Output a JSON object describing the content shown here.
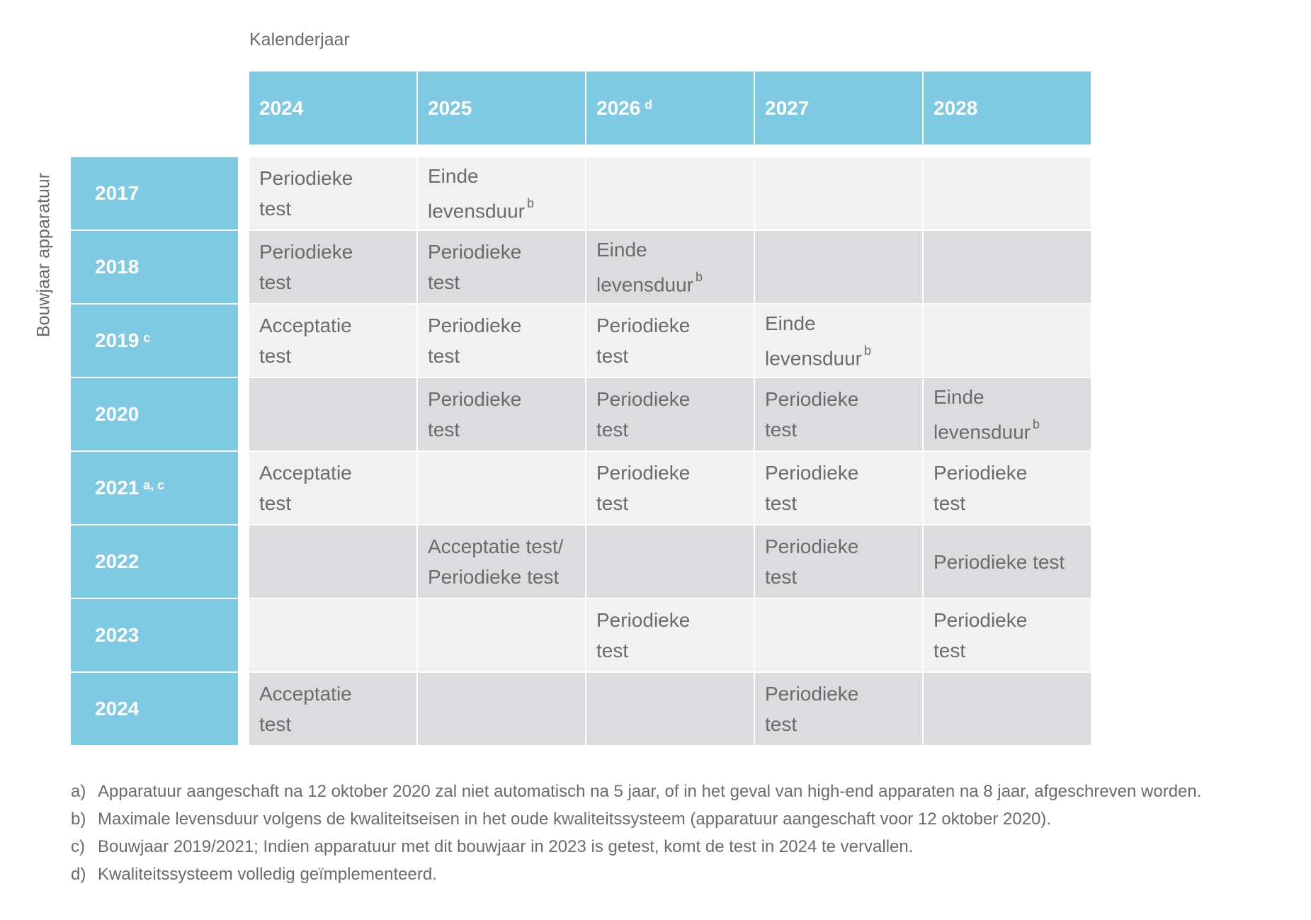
{
  "column_axis_title": "Kalenderjaar",
  "row_axis_title": "Bouwjaar apparatuur",
  "columns": [
    {
      "label": "2024",
      "sup": ""
    },
    {
      "label": "2025",
      "sup": ""
    },
    {
      "label": "2026",
      "sup": "d"
    },
    {
      "label": "2027",
      "sup": ""
    },
    {
      "label": "2028",
      "sup": ""
    }
  ],
  "rows": [
    {
      "label": "2017",
      "sup": "",
      "cells": [
        {
          "line1": "Periodieke",
          "line2": "test",
          "sup": ""
        },
        {
          "line1": "Einde",
          "line2": "levensduur",
          "sup": "b"
        },
        {
          "line1": "",
          "line2": "",
          "sup": ""
        },
        {
          "line1": "",
          "line2": "",
          "sup": ""
        },
        {
          "line1": "",
          "line2": "",
          "sup": ""
        }
      ]
    },
    {
      "label": "2018",
      "sup": "",
      "cells": [
        {
          "line1": "Periodieke",
          "line2": "test",
          "sup": ""
        },
        {
          "line1": "Periodieke",
          "line2": "test",
          "sup": ""
        },
        {
          "line1": "Einde",
          "line2": "levensduur",
          "sup": "b"
        },
        {
          "line1": "",
          "line2": "",
          "sup": ""
        },
        {
          "line1": "",
          "line2": "",
          "sup": ""
        }
      ]
    },
    {
      "label": "2019",
      "sup": "c",
      "cells": [
        {
          "line1": "Acceptatie",
          "line2": "test",
          "sup": ""
        },
        {
          "line1": "Periodieke",
          "line2": "test",
          "sup": ""
        },
        {
          "line1": "Periodieke",
          "line2": "test",
          "sup": ""
        },
        {
          "line1": "Einde",
          "line2": "levensduur",
          "sup": "b"
        },
        {
          "line1": "",
          "line2": "",
          "sup": ""
        }
      ]
    },
    {
      "label": "2020",
      "sup": "",
      "cells": [
        {
          "line1": "",
          "line2": "",
          "sup": ""
        },
        {
          "line1": "Periodieke",
          "line2": "test",
          "sup": ""
        },
        {
          "line1": "Periodieke",
          "line2": "test",
          "sup": ""
        },
        {
          "line1": "Periodieke",
          "line2": "test",
          "sup": ""
        },
        {
          "line1": "Einde",
          "line2": "levensduur",
          "sup": "b"
        }
      ]
    },
    {
      "label": "2021",
      "sup": "a, c",
      "cells": [
        {
          "line1": "Acceptatie",
          "line2": "test",
          "sup": ""
        },
        {
          "line1": "",
          "line2": "",
          "sup": ""
        },
        {
          "line1": "Periodieke",
          "line2": "test",
          "sup": ""
        },
        {
          "line1": "Periodieke",
          "line2": "test",
          "sup": ""
        },
        {
          "line1": "Periodieke",
          "line2": "test",
          "sup": ""
        }
      ]
    },
    {
      "label": "2022",
      "sup": "",
      "cells": [
        {
          "line1": "",
          "line2": "",
          "sup": ""
        },
        {
          "line1": "Acceptatie test/",
          "line2": "Periodieke test",
          "sup": ""
        },
        {
          "line1": "",
          "line2": "",
          "sup": ""
        },
        {
          "line1": "Periodieke",
          "line2": "test",
          "sup": ""
        },
        {
          "line1": "Periodieke test",
          "line2": "",
          "sup": ""
        }
      ]
    },
    {
      "label": "2023",
      "sup": "",
      "cells": [
        {
          "line1": "",
          "line2": "",
          "sup": ""
        },
        {
          "line1": "",
          "line2": "",
          "sup": ""
        },
        {
          "line1": "Periodieke",
          "line2": "test",
          "sup": ""
        },
        {
          "line1": "",
          "line2": "",
          "sup": ""
        },
        {
          "line1": "Periodieke",
          "line2": "test",
          "sup": ""
        }
      ]
    },
    {
      "label": "2024",
      "sup": "",
      "cells": [
        {
          "line1": "Acceptatie",
          "line2": "test",
          "sup": ""
        },
        {
          "line1": "",
          "line2": "",
          "sup": ""
        },
        {
          "line1": "",
          "line2": "",
          "sup": ""
        },
        {
          "line1": "Periodieke",
          "line2": "test",
          "sup": ""
        },
        {
          "line1": "",
          "line2": "",
          "sup": ""
        }
      ]
    }
  ],
  "footnotes": [
    {
      "label": "a)",
      "text": "Apparatuur aangeschaft na 12 oktober 2020 zal niet automatisch na 5 jaar, of in het geval van high-end apparaten na 8 jaar, afgeschreven worden."
    },
    {
      "label": "b)",
      "text": "Maximale levensduur volgens de kwaliteitseisen in het oude kwaliteitssysteem (apparatuur aangeschaft voor 12 oktober 2020)."
    },
    {
      "label": "c)",
      "text": "Bouwjaar 2019/2021; Indien apparatuur met dit bouwjaar in 2023 is getest, komt de test in 2024 te vervallen."
    },
    {
      "label": "d)",
      "text": "Kwaliteitssysteem volledig geïmplementeerd."
    }
  ],
  "colors": {
    "header_bg": "#7ecae3",
    "cell_light": "#f1f1f1",
    "cell_dark": "#dcdcdf",
    "text": "#6b6b6b"
  }
}
